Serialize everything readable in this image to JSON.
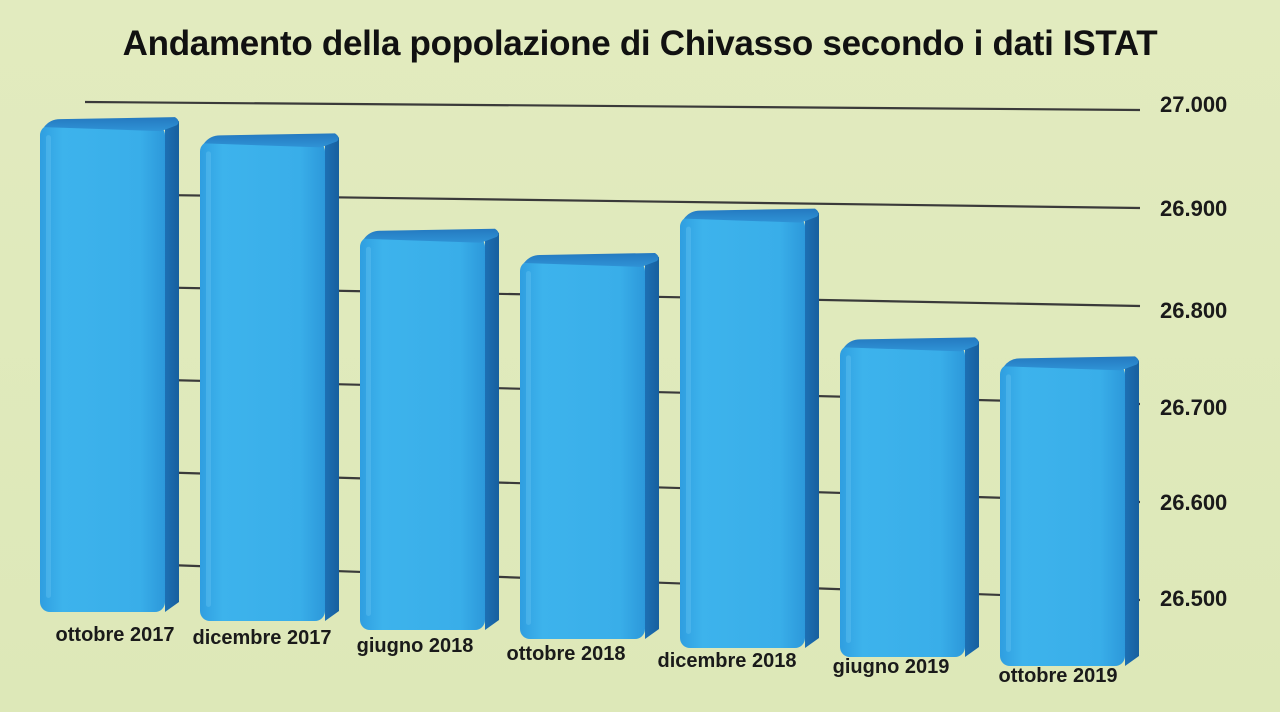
{
  "chart_data": {
    "type": "bar",
    "title": "Andamento della popolazione di Chivasso secondo i dati ISTAT",
    "xlabel": "",
    "ylabel": "",
    "categories": [
      "ottobre 2017",
      "dicembre 2017",
      "giugno 2018",
      "ottobre 2018",
      "dicembre 2018",
      "giugno 2019",
      "ottobre 2019"
    ],
    "values": [
      26988,
      26972,
      26872,
      26849,
      26898,
      26767,
      26751
    ],
    "y_ticks": [
      "26.500",
      "26.600",
      "26.700",
      "26.800",
      "26.900",
      "27.000"
    ],
    "y_tick_values": [
      26500,
      26600,
      26700,
      26800,
      26900,
      27000
    ],
    "ylim": [
      26500,
      27000
    ],
    "grid": true,
    "legend": "none",
    "style": "3d",
    "colors": {
      "background": "#dfe9bb",
      "bar_front": "#3aaee8",
      "bar_side": "#1f79bf",
      "bar_top": "#2b8ad0",
      "gridline": "#3a3a3a"
    }
  }
}
